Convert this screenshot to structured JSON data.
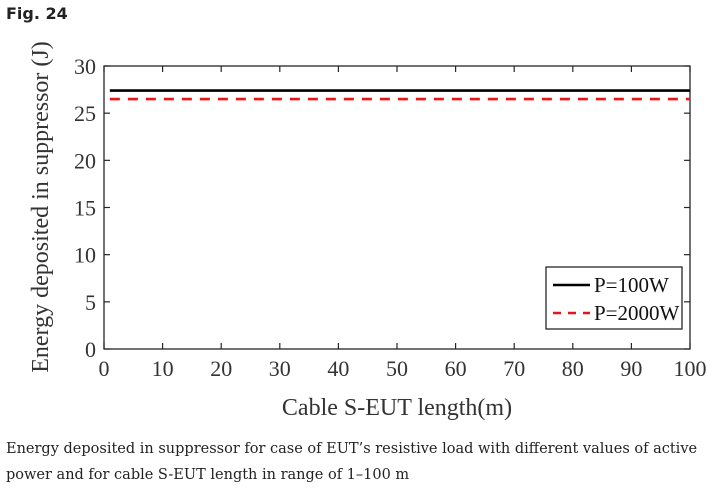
{
  "figure_label": "Fig. 24",
  "caption": "Energy deposited in suppressor for case of EUT’s resistive load with different values of active power and for cable S-EUT length in range of 1–100 m",
  "chart_data": {
    "type": "line",
    "xlabel": "Cable S-EUT length(m)",
    "ylabel": "Energy deposited in suppressor (J)",
    "xlim": [
      0,
      100
    ],
    "ylim": [
      0,
      30
    ],
    "x_ticks": [
      0,
      10,
      20,
      30,
      40,
      50,
      60,
      70,
      80,
      90,
      100
    ],
    "y_ticks": [
      0,
      5,
      10,
      15,
      20,
      25,
      30
    ],
    "grid": false,
    "legend_position": "bottom-right",
    "series": [
      {
        "name": "P=100W",
        "x": [
          1,
          100
        ],
        "y": [
          27.4,
          27.4
        ],
        "color": "#000000",
        "style": "solid"
      },
      {
        "name": "P=2000W",
        "x": [
          1,
          100
        ],
        "y": [
          26.5,
          26.5
        ],
        "color": "#e8141b",
        "style": "dashed"
      }
    ]
  }
}
